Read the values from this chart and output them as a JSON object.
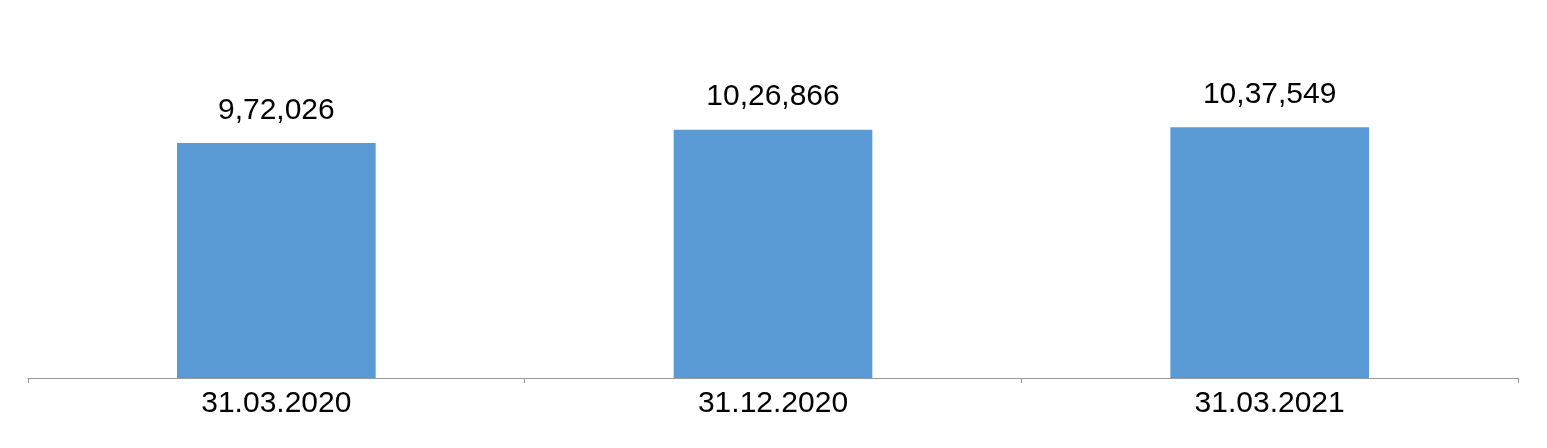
{
  "chart_data": {
    "type": "bar",
    "categories": [
      "31.03.2020",
      "31.12.2020",
      "31.03.2021"
    ],
    "values": [
      972026,
      1026866,
      1037549
    ],
    "value_labels": [
      "9,72,026",
      "10,26,866",
      "10,37,549"
    ],
    "color": "#5b9bd5"
  }
}
